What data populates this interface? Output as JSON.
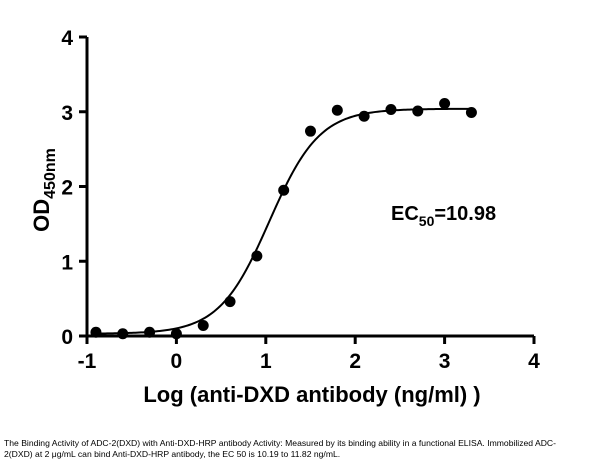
{
  "chart_data": {
    "type": "scatter",
    "xlabel": "Log (anti-DXD antibody (ng/ml) )",
    "ylabel": {
      "main": "OD",
      "sub": "450nm"
    },
    "annotation": {
      "prefix": "EC",
      "sub": "50",
      "suffix": "=10.98"
    },
    "xlim": [
      -1,
      4
    ],
    "ylim": [
      0,
      4
    ],
    "x_ticks": [
      -1,
      0,
      1,
      2,
      3,
      4
    ],
    "y_ticks": [
      0,
      1,
      2,
      3,
      4
    ],
    "series": [
      {
        "x": [
          -0.9,
          -0.6,
          -0.3,
          0.0,
          0.3,
          0.6,
          0.9,
          1.2,
          1.5,
          1.8,
          2.1,
          2.4,
          2.7,
          3.0,
          3.3
        ],
        "y": [
          0.05,
          0.03,
          0.05,
          0.03,
          0.14,
          0.46,
          1.07,
          1.95,
          2.74,
          3.02,
          2.94,
          3.03,
          3.01,
          3.11,
          2.99
        ]
      }
    ],
    "fit": {
      "bottom": 0.03,
      "top": 3.04,
      "logEC50": 1.04,
      "hill": 1.55,
      "x_range": [
        -0.9,
        3.3
      ]
    }
  },
  "caption": "The Binding Activity of ADC-2(DXD) with Anti-DXD-HRP antibody Activity: Measured by its binding ability in a functional ELISA. Immobilized ADC-2(DXD) at 2 μg/mL can bind Anti-DXD-HRP antibody, the EC 50  is 10.19 to 11.82 ng/mL."
}
